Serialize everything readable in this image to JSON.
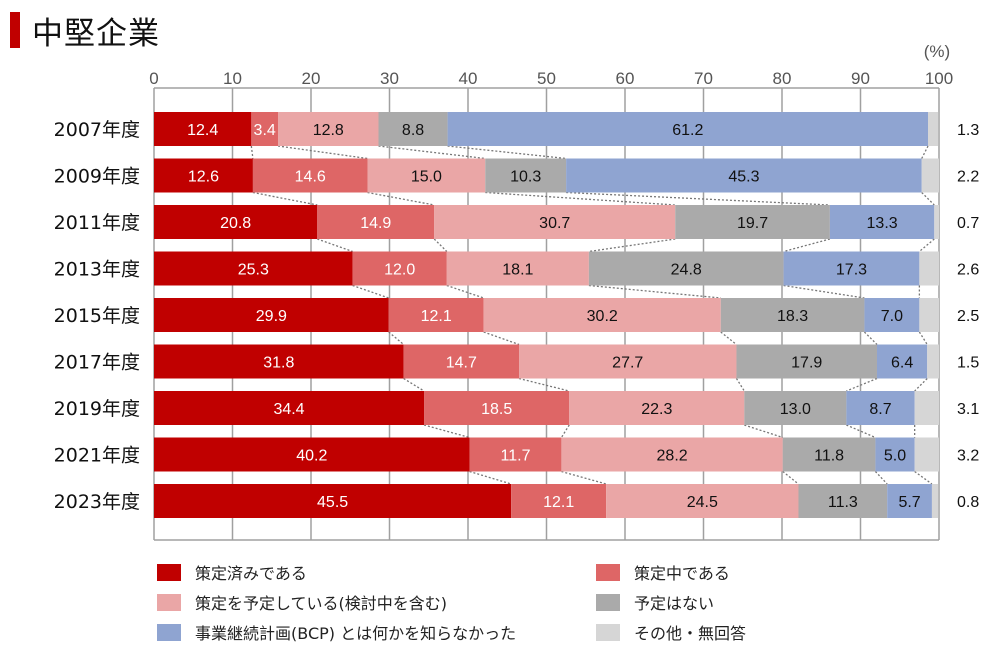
{
  "title": "中堅企業",
  "chart_data": {
    "type": "bar",
    "orientation": "horizontal",
    "stacked": "100%",
    "title": "中堅企業",
    "unit_label": "(%)",
    "xlim": [
      0,
      100
    ],
    "xticks": [
      0,
      10,
      20,
      30,
      40,
      50,
      60,
      70,
      80,
      90,
      100
    ],
    "grid": true,
    "legend_position": "bottom",
    "categories": [
      "2007年度",
      "2009年度",
      "2011年度",
      "2013年度",
      "2015年度",
      "2017年度",
      "2019年度",
      "2021年度",
      "2023年度"
    ],
    "series": [
      {
        "name": "策定済みである",
        "color": "#c00000",
        "label_color": "#ffffff",
        "values": [
          12.4,
          12.6,
          20.8,
          25.3,
          29.9,
          31.8,
          34.4,
          40.2,
          45.5
        ]
      },
      {
        "name": "策定中である",
        "color": "#de6666",
        "label_color": "#ffffff",
        "values": [
          3.4,
          14.6,
          14.9,
          12.0,
          12.1,
          14.7,
          18.5,
          11.7,
          12.1
        ]
      },
      {
        "name": "策定を予定している(検討中を含む)",
        "color": "#eaa6a6",
        "label_color": "#111111",
        "values": [
          12.8,
          15.0,
          30.7,
          18.1,
          30.2,
          27.7,
          22.3,
          28.2,
          24.5
        ]
      },
      {
        "name": "予定はない",
        "color": "#aaaaaa",
        "label_color": "#111111",
        "values": [
          8.8,
          10.3,
          19.7,
          24.8,
          18.3,
          17.9,
          13.0,
          11.8,
          11.3
        ]
      },
      {
        "name": "事業継続計画(BCP) とは何かを知らなかった",
        "color": "#8fa4d1",
        "label_color": "#111111",
        "values": [
          61.2,
          45.3,
          13.3,
          17.3,
          7.0,
          6.4,
          8.7,
          5.0,
          5.7
        ]
      },
      {
        "name": "その他・無回答",
        "color": "#d6d6d6",
        "label_color": "#111111",
        "values": [
          1.3,
          2.2,
          0.7,
          2.6,
          2.5,
          1.5,
          3.1,
          3.2,
          0.8
        ]
      }
    ],
    "legend": [
      {
        "name": "策定済みである",
        "color": "#c00000"
      },
      {
        "name": "策定中である",
        "color": "#de6666"
      },
      {
        "name": "策定を予定している(検討中を含む)",
        "color": "#eaa6a6"
      },
      {
        "name": "予定はない",
        "color": "#aaaaaa"
      },
      {
        "name": "事業継続計画(BCP) とは何かを知らなかった",
        "color": "#8fa4d1"
      },
      {
        "name": "その他・無回答",
        "color": "#d6d6d6"
      }
    ]
  }
}
